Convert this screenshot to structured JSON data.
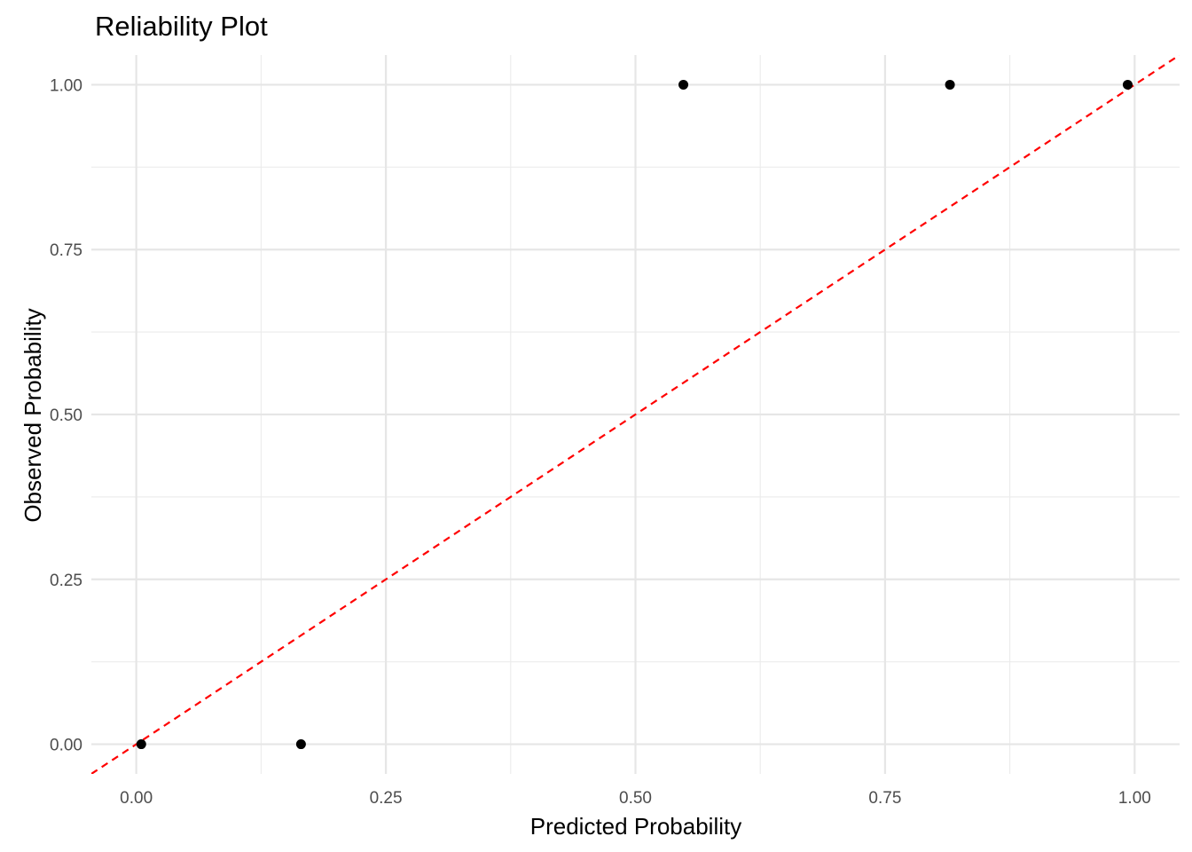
{
  "chart_data": {
    "type": "scatter",
    "title": "Reliability Plot",
    "xlabel": "Predicted Probability",
    "ylabel": "Observed Probability",
    "xlim": [
      -0.045,
      1.045
    ],
    "ylim": [
      -0.045,
      1.045
    ],
    "x_ticks": [
      "0.00",
      "0.25",
      "0.50",
      "0.75",
      "1.00"
    ],
    "y_ticks": [
      "0.00",
      "0.25",
      "0.50",
      "0.75",
      "1.00"
    ],
    "grid": true,
    "legend": "none",
    "series": [
      {
        "points": [
          {
            "x": 0.005,
            "y": 0.0
          },
          {
            "x": 0.165,
            "y": 0.0
          },
          {
            "x": 0.548,
            "y": 1.0
          },
          {
            "x": 0.815,
            "y": 1.0
          },
          {
            "x": 0.993,
            "y": 1.0
          }
        ],
        "color": "#000000"
      }
    ],
    "reference_line": {
      "type": "identity",
      "slope": 1,
      "intercept": 0,
      "style": "dashed",
      "color": "#ff0000"
    }
  }
}
